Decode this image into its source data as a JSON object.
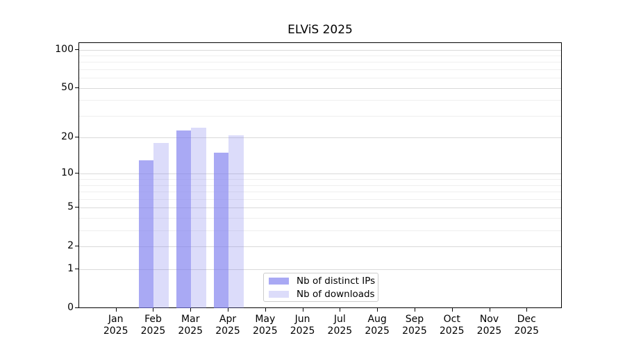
{
  "title": "ELViS 2025",
  "chart_data": {
    "type": "bar",
    "title": "ELViS 2025",
    "yscale": "log1p",
    "ylim": [
      0,
      113
    ],
    "grid": true,
    "legend_position": "lower center",
    "year": "2025",
    "categories_month": [
      "Jan",
      "Feb",
      "Mar",
      "Apr",
      "May",
      "Jun",
      "Jul",
      "Aug",
      "Sep",
      "Oct",
      "Nov",
      "Dec"
    ],
    "yticks": [
      0,
      1,
      2,
      5,
      10,
      20,
      50,
      100
    ],
    "yticks_minor": [
      3,
      4,
      6,
      7,
      8,
      9,
      30,
      40,
      60,
      70,
      80,
      90
    ],
    "series": [
      {
        "name": "Nb of distinct IPs",
        "color": "rgba(124,124,238,0.66)",
        "values": [
          null,
          13,
          23,
          15,
          null,
          null,
          null,
          null,
          null,
          null,
          null,
          null
        ]
      },
      {
        "name": "Nb of downloads",
        "color": "rgba(124,124,238,0.27)",
        "values": [
          null,
          18,
          24,
          21,
          null,
          null,
          null,
          null,
          null,
          null,
          null,
          null
        ]
      }
    ]
  },
  "colors": {
    "background": "#ffffff",
    "axis": "#000000",
    "grid_major": "#d9d9d9",
    "grid_minor": "#efefef",
    "legend_border": "#cccccc",
    "bar_base": "#7c7cee"
  }
}
